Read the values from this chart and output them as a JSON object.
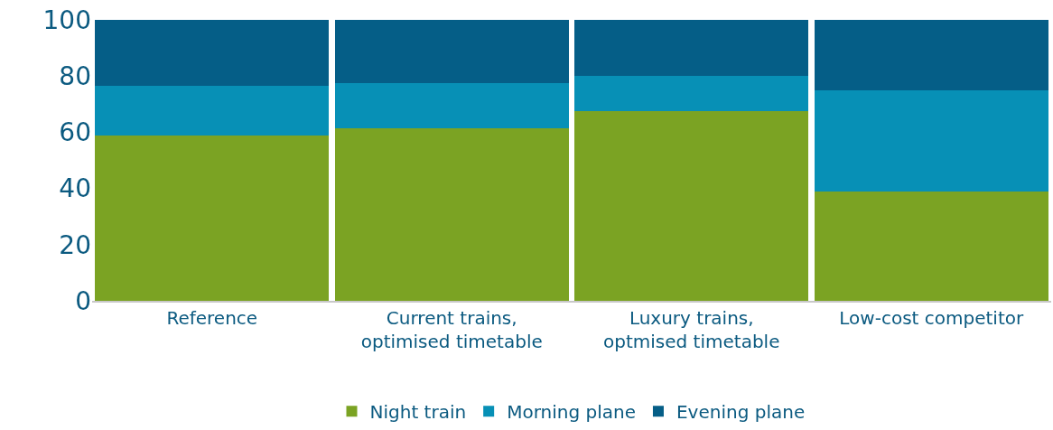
{
  "chart_data": {
    "type": "bar",
    "stacked": true,
    "categories": [
      "Reference",
      "Current trains,\noptimised timetable",
      "Luxury trains,\noptmised timetable",
      "Low-cost competitor"
    ],
    "series": [
      {
        "name": "Night train",
        "color": "#7ba323",
        "values": [
          59,
          61.5,
          67.5,
          39
        ]
      },
      {
        "name": "Morning plane",
        "color": "#0790b6",
        "values": [
          17.5,
          16,
          12.5,
          36
        ]
      },
      {
        "name": "Evening plane",
        "color": "#055e87",
        "values": [
          23.5,
          22.5,
          20,
          25
        ]
      }
    ],
    "ylim": [
      0,
      100
    ],
    "yticks": [
      0,
      20,
      40,
      60,
      80,
      100
    ],
    "legend": "bottom"
  }
}
